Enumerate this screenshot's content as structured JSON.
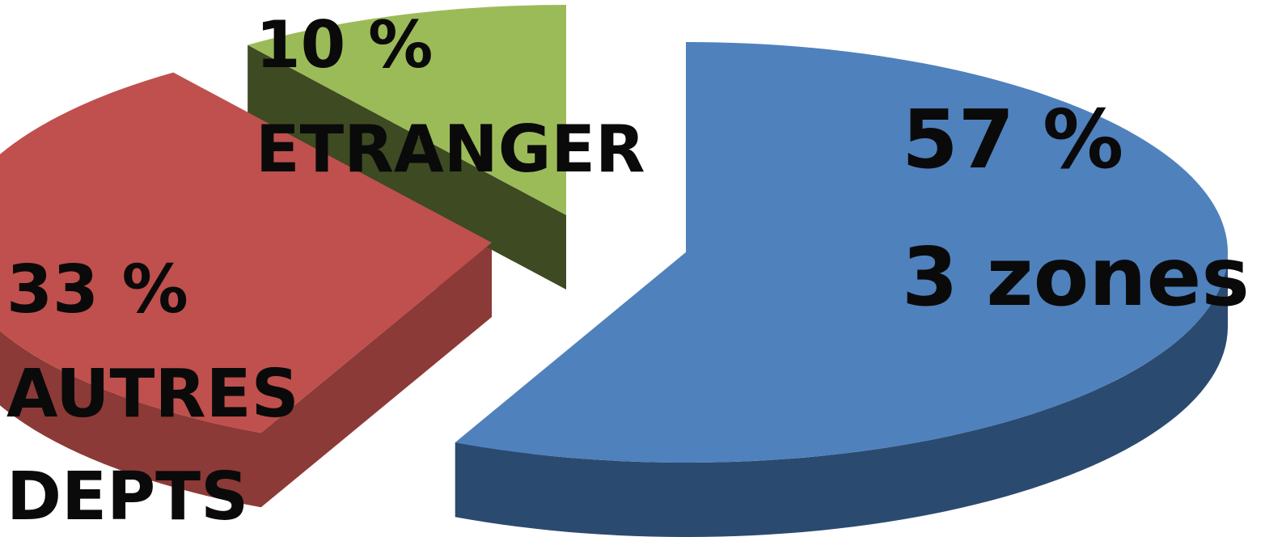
{
  "chart_data": {
    "type": "pie",
    "style": "3d-exploded",
    "slices": [
      {
        "name": "3 zones",
        "value": 57,
        "percent_label": "57 %",
        "lines": [
          "57 %",
          "3 zones"
        ],
        "color": "#4f81bd",
        "side_color": "#2b4a6f"
      },
      {
        "name": "AUTRES DEPTS",
        "value": 33,
        "percent_label": "33 %",
        "lines": [
          "33 %",
          "AUTRES",
          "DEPTS"
        ],
        "color": "#c0504d",
        "side_color": "#8c3a37"
      },
      {
        "name": "ETRANGER",
        "value": 10,
        "percent_label": "10 %",
        "lines": [
          "10 %",
          "ETRANGER"
        ],
        "color": "#9bbb59",
        "side_color": "#3e4a22"
      }
    ],
    "title": "",
    "legend": "none"
  }
}
